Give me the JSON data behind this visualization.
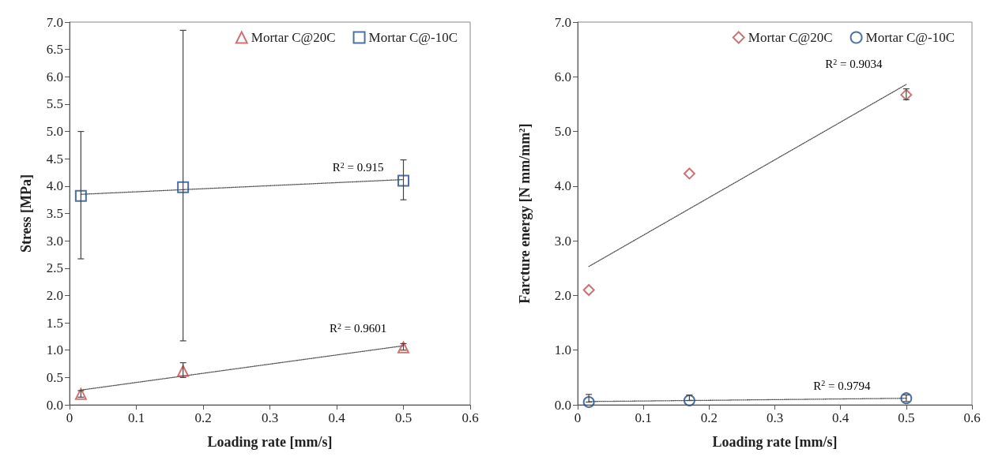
{
  "chart_data": [
    {
      "type": "scatter",
      "xlabel": "Loading rate [mm/s]",
      "ylabel": "Stress [MPa]",
      "xlim": [
        0,
        0.6
      ],
      "xticks": [
        0,
        0.1,
        0.2,
        0.3,
        0.4,
        0.5,
        0.6
      ],
      "ylim": [
        0,
        7
      ],
      "yticks": [
        {
          "value": 0,
          "label": "0.0"
        },
        {
          "value": 0.5,
          "label": "0.5"
        },
        {
          "value": 1,
          "label": "1.0"
        },
        {
          "value": 1.5,
          "label": "1.5"
        },
        {
          "value": 2,
          "label": "2.0"
        },
        {
          "value": 2.5,
          "label": "2.5"
        },
        {
          "value": 3,
          "label": "3.0"
        },
        {
          "value": 3.5,
          "label": "3.5"
        },
        {
          "value": 4,
          "label": "4.0"
        },
        {
          "value": 4.5,
          "label": "4.5"
        },
        {
          "value": 5,
          "label": "5.0"
        },
        {
          "value": 5.5,
          "label": "5.5"
        },
        {
          "value": 6,
          "label": "6.0"
        },
        {
          "value": 6.5,
          "label": "6.5"
        },
        {
          "value": 7,
          "label": "7.0"
        }
      ],
      "grid": false,
      "legend": "top right",
      "series": [
        {
          "name": "Mortar C@20C",
          "color": "#c0504d",
          "marker": "triangle",
          "x": [
            0.017,
            0.17,
            0.5
          ],
          "values": [
            0.2,
            0.62,
            1.05
          ],
          "errors": [
            [
              0.14,
              0.26
            ],
            [
              0.5,
              0.77
            ],
            [
              1.0,
              1.12
            ]
          ]
        },
        {
          "name": "Mortar C@-10C",
          "color": "#1f4e8c",
          "marker": "square",
          "x": [
            0.017,
            0.17,
            0.5
          ],
          "values": [
            3.82,
            3.98,
            4.1
          ],
          "errors": [
            [
              2.67,
              5.0
            ],
            [
              1.17,
              6.85
            ],
            [
              3.75,
              4.48
            ]
          ]
        },
        {
          "type": "line",
          "color": "#555555",
          "marker": "none",
          "line_style": "dotted",
          "x": [
            0.017,
            0.5
          ],
          "values": [
            0.27,
            1.08
          ]
        },
        {
          "type": "line",
          "color": "#555555",
          "marker": "none",
          "line_style": "dotted",
          "x": [
            0.017,
            0.5
          ],
          "values": [
            3.85,
            4.12
          ]
        }
      ],
      "annotations": [
        "R$^{2}$ = 0.915",
        "R$^{2}$ = 0.9601"
      ]
    },
    {
      "type": "scatter",
      "xlabel": "Loading rate [mm/s]",
      "ylabel": "Farcture energy [N mm/mm$^{2}$]",
      "xlim": [
        0,
        0.6
      ],
      "xticks": [
        0,
        0.1,
        0.2,
        0.3,
        0.4,
        0.5,
        0.6
      ],
      "ylim": [
        0,
        7
      ],
      "yticks": [
        {
          "value": 0,
          "label": "0.0"
        },
        {
          "value": 1,
          "label": "1.0"
        },
        {
          "value": 2,
          "label": "2.0"
        },
        {
          "value": 3,
          "label": "3.0"
        },
        {
          "value": 4,
          "label": "4.0"
        },
        {
          "value": 5,
          "label": "5.0"
        },
        {
          "value": 6,
          "label": "6.0"
        },
        {
          "value": 7,
          "label": "7.0"
        }
      ],
      "grid": false,
      "legend": "top right",
      "series": [
        {
          "name": "Mortar C@20C",
          "color": "#c0504d",
          "marker": "diamond",
          "x": [
            0.017,
            0.17,
            0.5
          ],
          "values": [
            2.1,
            4.23,
            5.67
          ],
          "errors": [
            null,
            null,
            [
              5.58,
              5.78
            ]
          ]
        },
        {
          "name": "Mortar C@-10C",
          "color": "#1f4e8c",
          "marker": "circle",
          "x": [
            0.017,
            0.17,
            0.5
          ],
          "values": [
            0.05,
            0.08,
            0.12
          ],
          "errors": [
            [
              0.05,
              0.19
            ],
            [
              0.08,
              0.18
            ],
            [
              0.06,
              0.18
            ]
          ]
        },
        {
          "type": "line",
          "color": "#555555",
          "marker": "none",
          "line_style": "dotted",
          "x": [
            0.017,
            0.5
          ],
          "values": [
            2.53,
            5.86
          ]
        },
        {
          "type": "line",
          "color": "#555555",
          "marker": "none",
          "line_style": "dotted",
          "x": [
            0.017,
            0.5
          ],
          "values": [
            0.06,
            0.12
          ]
        }
      ],
      "annotations": [
        "R$^{2}$ = 0.9034",
        "R$^{2}$ = 0.9794"
      ]
    }
  ]
}
